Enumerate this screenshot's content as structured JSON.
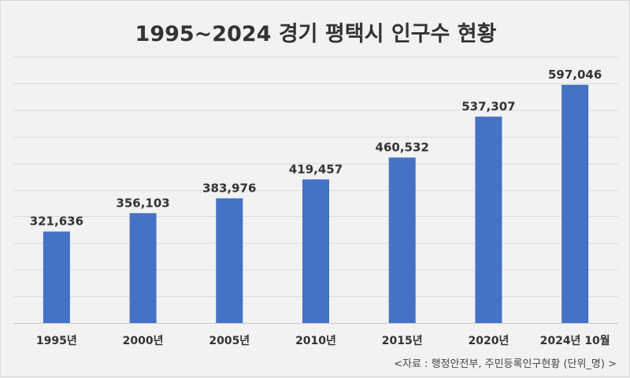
{
  "chart_data": {
    "type": "bar",
    "title": "1995~2024 경기 평택시 인구수 현황",
    "categories": [
      "1995년",
      "2000년",
      "2005년",
      "2010년",
      "2015년",
      "2020년",
      "2024년 10월"
    ],
    "values": [
      321636,
      356103,
      383976,
      419457,
      460532,
      537307,
      597046
    ],
    "value_labels": [
      "321,636",
      "356,103",
      "383,976",
      "419,457",
      "460,532",
      "537,307",
      "597,046"
    ],
    "series": [
      {
        "values": [
          321636,
          356103,
          383976,
          419457,
          460532,
          537307,
          597046
        ]
      }
    ],
    "ylim": [
      150000,
      650000
    ],
    "grid": true,
    "legend": "none",
    "bar_color": "#4472c4",
    "source": "<자료 : 행정안전부, 주민등록인구현황 (단위_명) >"
  }
}
